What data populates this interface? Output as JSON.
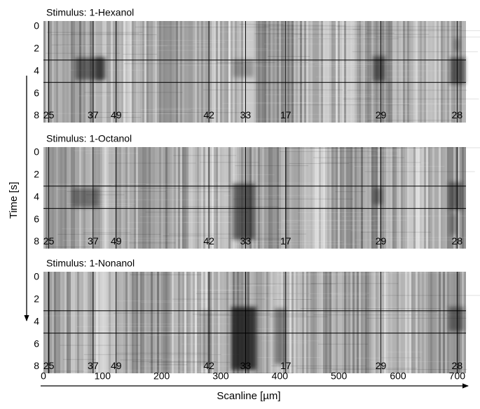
{
  "chart_data": [
    {
      "type": "heatmap",
      "title": "Stimulus: 1-Hexanol",
      "ylim": [
        -0.5,
        8.6
      ],
      "yticks": [
        0,
        2,
        4,
        6,
        8
      ],
      "hlines": [
        3,
        5
      ]
    },
    {
      "type": "heatmap",
      "title": "Stimulus: 1-Octanol",
      "ylim": [
        -0.5,
        8.6
      ],
      "yticks": [
        0,
        2,
        4,
        6,
        8
      ],
      "hlines": [
        3,
        5
      ]
    },
    {
      "type": "heatmap",
      "title": "Stimulus: 1-Nonanol",
      "ylim": [
        -0.5,
        8.6
      ],
      "yticks": [
        0,
        2,
        4,
        6,
        8
      ],
      "hlines": [
        3,
        5
      ]
    }
  ],
  "glomeruli": {
    "labels": [
      "25",
      "37",
      "49",
      "42",
      "33",
      "17",
      "29",
      "28"
    ],
    "x": [
      9,
      84,
      123,
      280,
      342,
      410,
      571,
      700
    ]
  },
  "x_axis": {
    "label": "Scanline [µm]",
    "xlim": [
      0,
      715
    ],
    "xticks": [
      0,
      100,
      200,
      300,
      400,
      500,
      600,
      700
    ]
  },
  "y_axis": {
    "label": "Time [s]"
  }
}
